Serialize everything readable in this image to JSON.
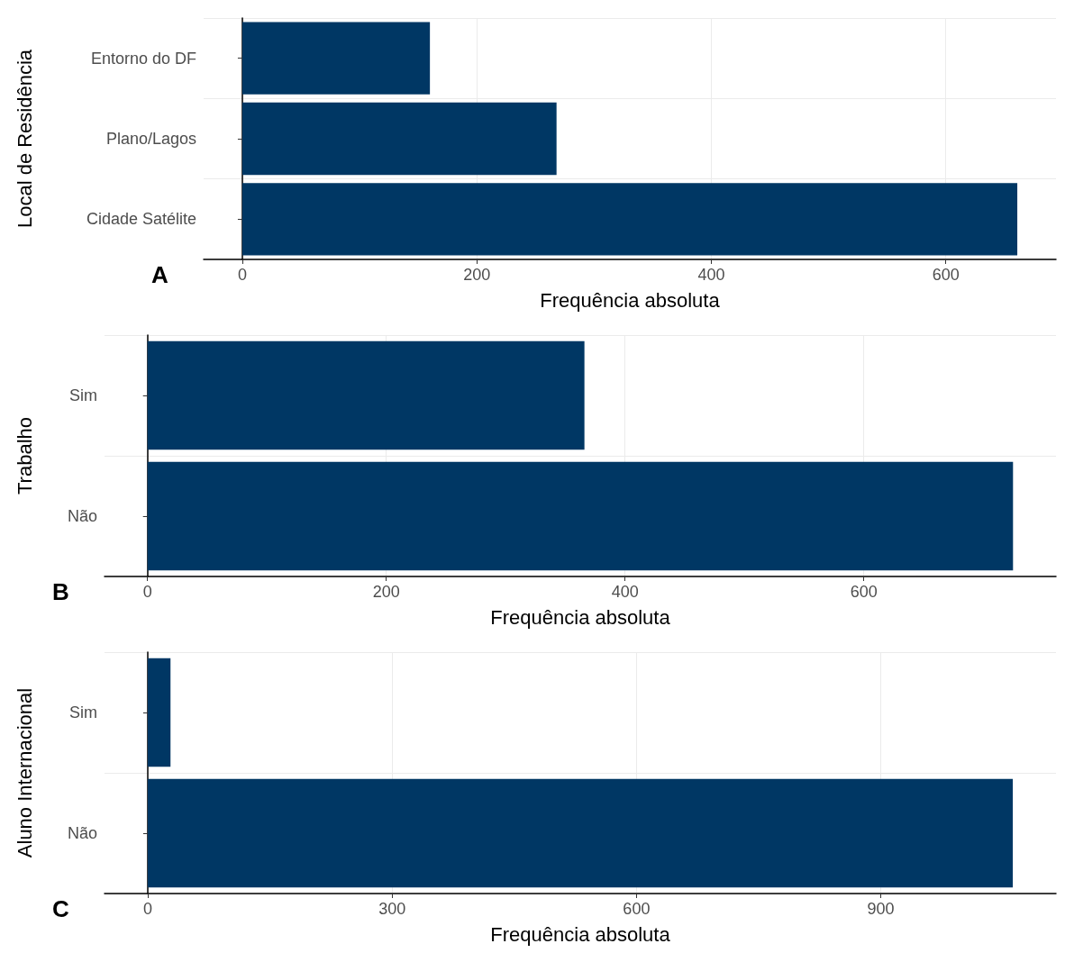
{
  "chart_data": [
    {
      "type": "bar",
      "orientation": "horizontal",
      "categories": [
        "Entorno do DF",
        "Plano/Lagos",
        "Cidade Satélite"
      ],
      "values": [
        160,
        268,
        661
      ],
      "color": "#003764",
      "xlim": [
        -33,
        694
      ],
      "xticks": [
        0,
        200,
        400,
        600
      ],
      "xlabel": "Frequência absoluta",
      "ylabel": "Local de Residência",
      "grid": true,
      "annotations": [
        "A"
      ]
    },
    {
      "type": "bar",
      "orientation": "horizontal",
      "categories": [
        "Sim",
        "Não"
      ],
      "values": [
        366,
        725
      ],
      "color": "#003764",
      "xlim": [
        -36,
        761
      ],
      "xticks": [
        0,
        200,
        400,
        600
      ],
      "xlabel": "Frequência absoluta",
      "ylabel": "Trabalho",
      "grid": true,
      "annotations": [
        "B"
      ]
    },
    {
      "type": "bar",
      "orientation": "horizontal",
      "categories": [
        "Sim",
        "Não"
      ],
      "values": [
        28,
        1062
      ],
      "color": "#003764",
      "xlim": [
        -53,
        1115
      ],
      "xticks": [
        0,
        300,
        600,
        900
      ],
      "xlabel": "Frequência absoluta",
      "ylabel": "Aluno Internacional",
      "grid": true,
      "annotations": [
        "C"
      ]
    }
  ]
}
